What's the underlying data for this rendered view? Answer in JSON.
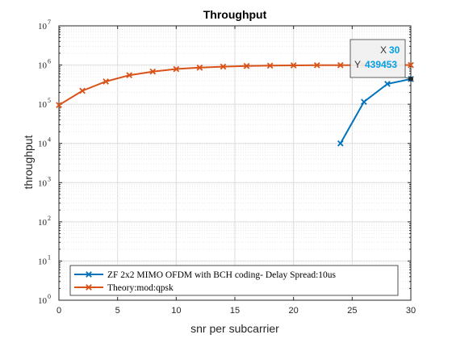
{
  "chart_data": {
    "type": "line",
    "title": "Throughput",
    "xlabel": "snr per subcarrier",
    "ylabel": "throughput",
    "xlim": [
      0,
      30
    ],
    "ylim": [
      1,
      10000000
    ],
    "yscale": "log",
    "xticks": [
      "0",
      "5",
      "10",
      "15",
      "20",
      "25",
      "30"
    ],
    "yticks": [
      {
        "base": "10",
        "exp": "0"
      },
      {
        "base": "10",
        "exp": "1"
      },
      {
        "base": "10",
        "exp": "2"
      },
      {
        "base": "10",
        "exp": "3"
      },
      {
        "base": "10",
        "exp": "4"
      },
      {
        "base": "10",
        "exp": "5"
      },
      {
        "base": "10",
        "exp": "6"
      },
      {
        "base": "10",
        "exp": "7"
      }
    ],
    "grid": true,
    "legend_position": "bottom",
    "series": [
      {
        "name": "ZF 2x2 MIMO OFDM with BCH coding- Delay Spread:10us",
        "color": "#0072BD",
        "marker": "x",
        "x": [
          24,
          26,
          28,
          30
        ],
        "y": [
          10000,
          115000,
          330000,
          439453
        ]
      },
      {
        "name": "Theory:mod:qpsk",
        "color": "#D95319",
        "marker": "x",
        "x": [
          0,
          2,
          4,
          6,
          8,
          10,
          12,
          14,
          16,
          18,
          20,
          22,
          24,
          26,
          28,
          30
        ],
        "y": [
          95000,
          220000,
          380000,
          550000,
          680000,
          790000,
          860000,
          910000,
          945000,
          965000,
          980000,
          988000,
          992000,
          995000,
          997000,
          998000
        ]
      }
    ],
    "datatip": {
      "x_label": "X",
      "x_value": "30",
      "y_label": "Y",
      "y_value": "439453",
      "value_color": "#00A0E3",
      "point_x": 30,
      "point_y": 439453
    }
  }
}
